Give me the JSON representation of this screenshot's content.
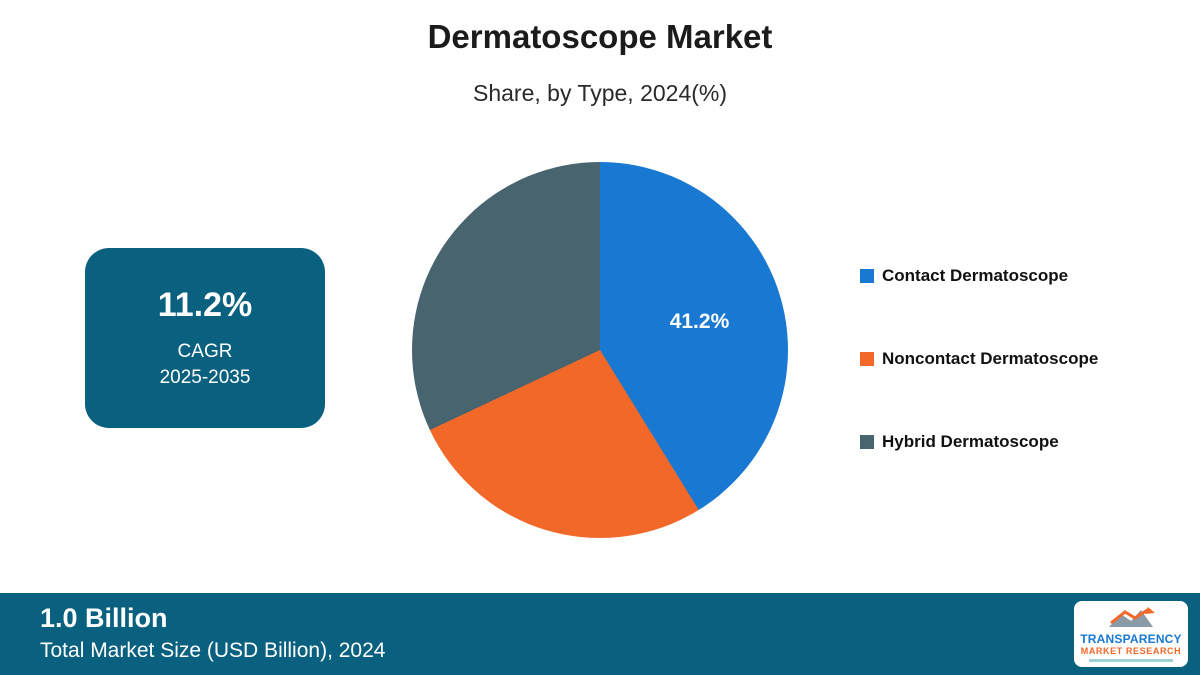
{
  "title": "Dermatoscope Market",
  "subtitle": "Share, by Type, 2024(%)",
  "cagr_box": {
    "value": "11.2%",
    "label": "CAGR",
    "period": "2025-2035"
  },
  "footer": {
    "value": "1.0 Billion",
    "caption": "Total Market Size (USD Billion), 2024"
  },
  "logo": {
    "line1": "TRANSPARENCY",
    "line2": "MARKET RESEARCH"
  },
  "colors": {
    "accent_teal": "#09607f",
    "contact_blue": "#1878d2",
    "noncontact_orange": "#f26829",
    "hybrid_gray": "#48646f",
    "background": "#ffffff",
    "data_label_text": "#ffffff"
  },
  "chart_data": {
    "type": "pie",
    "title": "Dermatoscope Market",
    "subtitle": "Share, by Type, 2024(%)",
    "legend_position": "right",
    "start_angle_deg": 0,
    "slices": [
      {
        "label": "Contact Dermatoscope",
        "value": 41.2,
        "color": "#1878d2",
        "data_label": "41.2%"
      },
      {
        "label": "Noncontact Dermatoscope",
        "value": 26.8,
        "color": "#f26829"
      },
      {
        "label": "Hybrid Dermatoscope",
        "value": 32.0,
        "color": "#48646f"
      }
    ]
  }
}
